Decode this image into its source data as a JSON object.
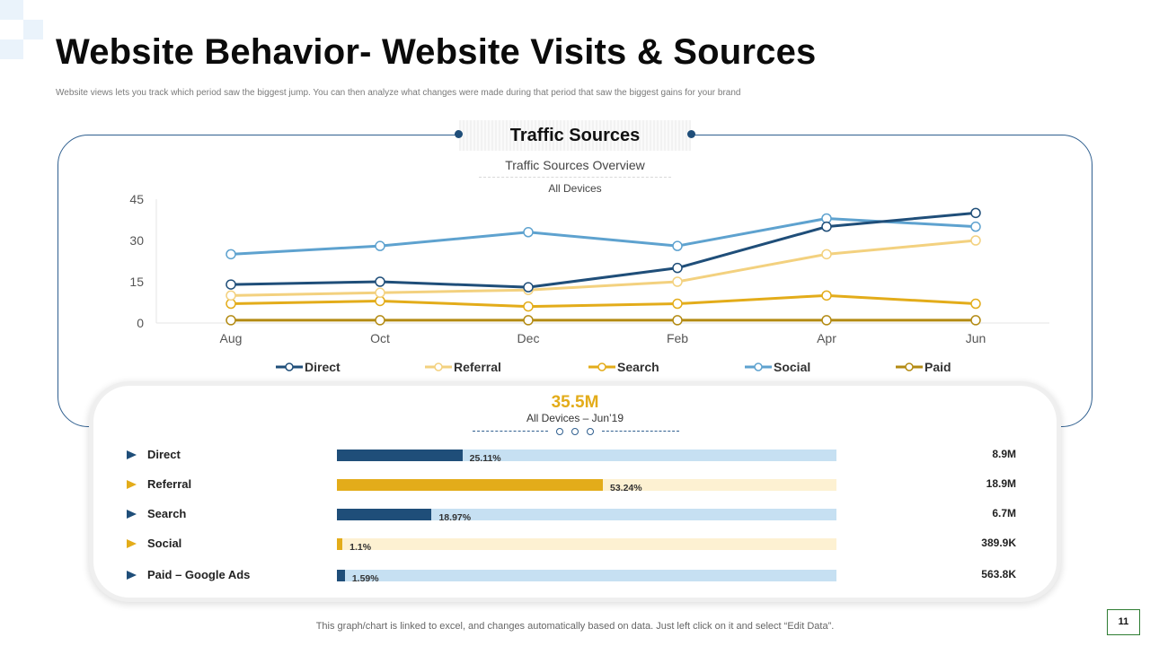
{
  "slide": {
    "title": "Website Behavior- Website Visits & Sources",
    "subtitle": "Website views lets you track which period saw the biggest jump. You can then analyze what changes were made during that period that saw the biggest gains for your brand",
    "section_title": "Traffic Sources",
    "footer": "This graph/chart is linked to excel, and changes automatically based on data. Just left click on it and select “Edit Data”.",
    "page_number": "11"
  },
  "colors": {
    "Direct": "#1f4e79",
    "Referral": "#f3d17f",
    "Search": "#e3ac1a",
    "Social": "#5ea2cf",
    "Paid": "#b38a12"
  },
  "chart_data": {
    "type": "line",
    "title": "Traffic Sources Overview",
    "subtitle": "All Devices",
    "categories": [
      "Aug",
      "Oct",
      "Dec",
      "Feb",
      "Apr",
      "Jun"
    ],
    "ylim": [
      0,
      45
    ],
    "yticks": [
      0,
      15,
      30,
      45
    ],
    "legend_position": "bottom",
    "series": [
      {
        "name": "Direct",
        "values": [
          14,
          15,
          13,
          20,
          35,
          40
        ]
      },
      {
        "name": "Referral",
        "values": [
          10,
          11,
          12,
          15,
          25,
          30
        ]
      },
      {
        "name": "Search",
        "values": [
          7,
          8,
          6,
          7,
          10,
          7
        ]
      },
      {
        "name": "Social",
        "values": [
          25,
          28,
          33,
          28,
          38,
          35
        ]
      },
      {
        "name": "Paid",
        "values": [
          1,
          1,
          1,
          1,
          1,
          1
        ]
      }
    ]
  },
  "summary": {
    "total": "35.5M",
    "label": "All Devices  – Jun’19",
    "rows": [
      {
        "name": "Direct",
        "percent": 25.11,
        "percent_label": "25.11%",
        "value": "8.9M"
      },
      {
        "name": "Referral",
        "percent": 53.24,
        "percent_label": "53.24%",
        "value": "18.9M"
      },
      {
        "name": "Search",
        "percent": 18.97,
        "percent_label": "18.97%",
        "value": "6.7M"
      },
      {
        "name": "Social",
        "percent": 1.1,
        "percent_label": "1.1%",
        "value": "389.9K"
      },
      {
        "name": "Paid – Google Ads",
        "percent": 1.59,
        "percent_label": "1.59%",
        "value": "563.8K"
      }
    ]
  }
}
